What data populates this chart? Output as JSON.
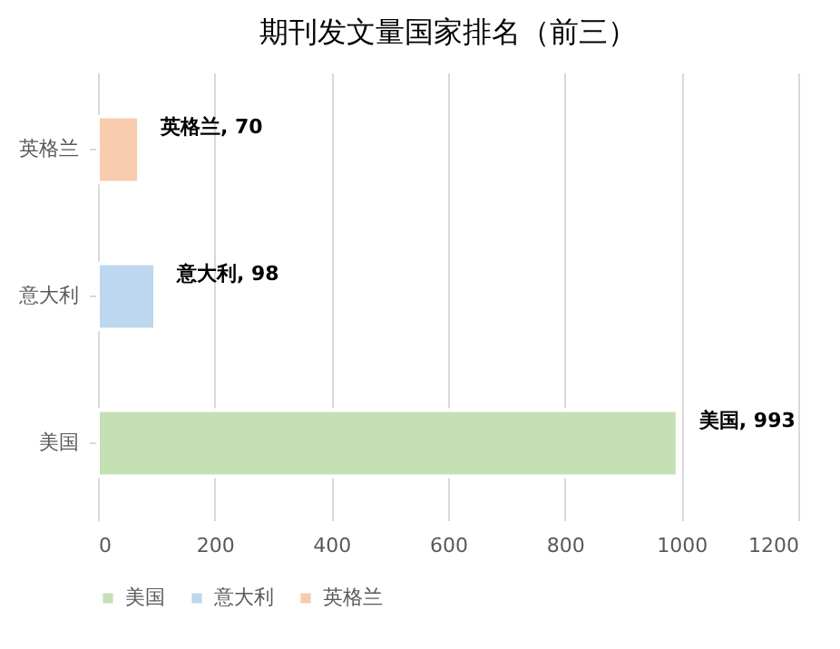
{
  "chart_data": {
    "type": "bar",
    "orientation": "horizontal",
    "title": "期刊发文量国家排名（前三）",
    "categories": [
      "英格兰",
      "意大利",
      "美国"
    ],
    "series": [
      {
        "name": "美国",
        "color": "#c5e0b4",
        "values": [
          null,
          null,
          993
        ],
        "value_labels": [
          null,
          null,
          "美国, 993"
        ]
      },
      {
        "name": "意大利",
        "color": "#bdd7ee",
        "values": [
          null,
          98,
          null
        ],
        "value_labels": [
          null,
          "意大利, 98",
          null
        ]
      },
      {
        "name": "英格兰",
        "color": "#f8cbad",
        "values": [
          70,
          null,
          null
        ],
        "value_labels": [
          "英格兰, 70",
          null,
          null
        ]
      }
    ],
    "xlim": [
      0,
      1200
    ],
    "xticks": [
      0,
      200,
      400,
      600,
      800,
      1000,
      1200
    ],
    "grid": "x",
    "legend": "bottom"
  }
}
